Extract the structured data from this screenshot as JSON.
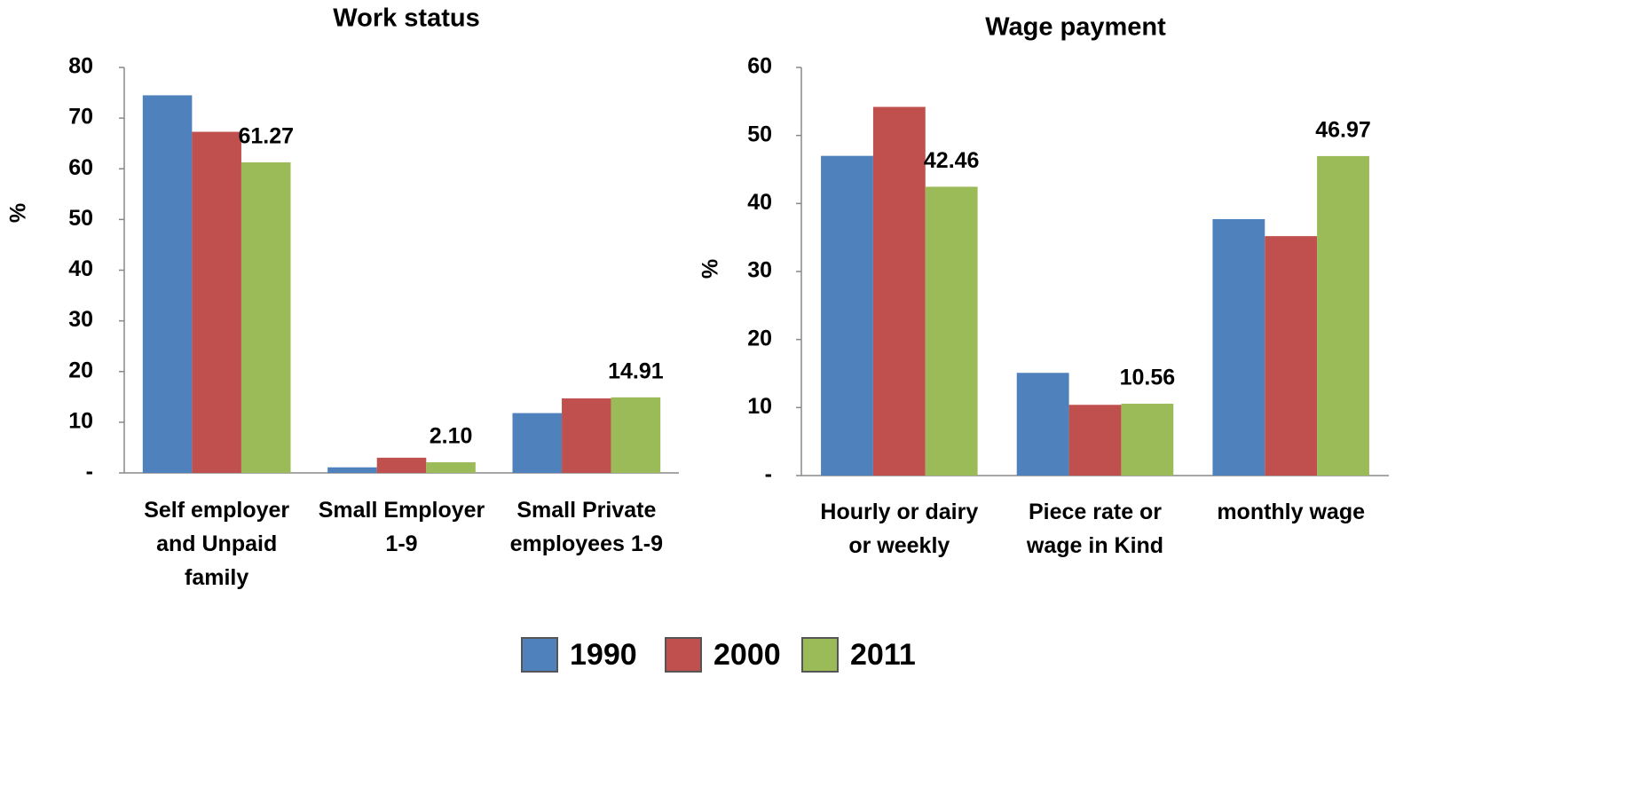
{
  "chart_data": [
    {
      "type": "bar",
      "title": "Work status",
      "y_label": "%",
      "categories": [
        "Self employer\nand Unpaid\nfamily",
        "Small Employer\n1-9",
        "Small Private\nemployees  1-9"
      ],
      "series": [
        {
          "name": "1990",
          "color": "#4f81bd",
          "values": [
            74.5,
            1.1,
            11.8
          ]
        },
        {
          "name": "2000",
          "color": "#c0504d",
          "values": [
            67.3,
            3.0,
            14.7
          ]
        },
        {
          "name": "2011",
          "color": "#9bbb59",
          "values": [
            61.27,
            2.1,
            14.91
          ],
          "value_labels": [
            "61.27",
            "2.10",
            "14.91"
          ]
        }
      ],
      "ylim": [
        0,
        80
      ],
      "yticks": [
        {
          "value": 0,
          "label": "-"
        },
        10,
        20,
        30,
        40,
        50,
        60,
        70,
        80
      ],
      "grid": false
    },
    {
      "type": "bar",
      "title": "Wage payment",
      "y_label": "%",
      "categories": [
        "Hourly or dairy\nor weekly",
        "Piece rate or\nwage in Kind",
        "monthly wage"
      ],
      "series": [
        {
          "name": "1990",
          "color": "#4f81bd",
          "values": [
            47.0,
            15.1,
            37.7
          ]
        },
        {
          "name": "2000",
          "color": "#c0504d",
          "values": [
            54.2,
            10.4,
            35.2
          ]
        },
        {
          "name": "2011",
          "color": "#9bbb59",
          "values": [
            42.46,
            10.56,
            46.97
          ],
          "value_labels": [
            "42.46",
            "10.56",
            "46.97"
          ]
        }
      ],
      "ylim": [
        0,
        60
      ],
      "yticks": [
        {
          "value": 0,
          "label": "-"
        },
        10,
        20,
        30,
        40,
        50,
        60
      ],
      "grid": false
    }
  ]
}
